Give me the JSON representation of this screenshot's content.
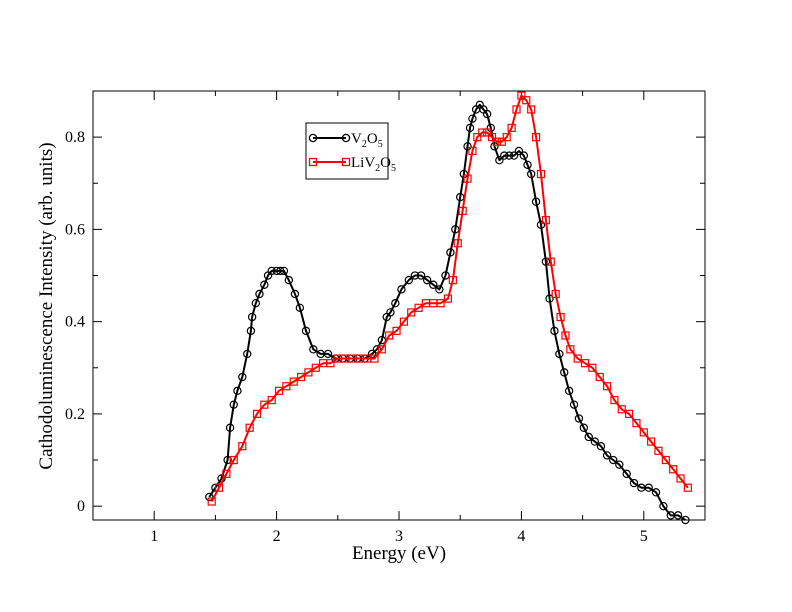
{
  "chart_data": {
    "type": "line",
    "title": "",
    "xlabel": "Energy (eV)",
    "ylabel": "Cathodoluminescence Intensity (arb. units)",
    "xlim": [
      0.5,
      5.5
    ],
    "ylim": [
      -0.03,
      0.9
    ],
    "x_ticks": [
      1,
      2,
      3,
      4,
      5
    ],
    "y_ticks": [
      0,
      0.2,
      0.4,
      0.6,
      0.8
    ],
    "x_tick_labels": [
      "1",
      "2",
      "3",
      "4",
      "5"
    ],
    "y_tick_labels": [
      "0",
      "0.2",
      "0.4",
      "0.6",
      "0.8"
    ],
    "legend_position": "upper-left-inside",
    "series": [
      {
        "name": "V2O5",
        "legend_main": "V",
        "legend_sub1": "2",
        "legend_mid": "O",
        "legend_sub2": "5",
        "color": "#000000",
        "marker": "circle",
        "x": [
          1.45,
          1.5,
          1.55,
          1.6,
          1.62,
          1.65,
          1.68,
          1.72,
          1.76,
          1.79,
          1.8,
          1.83,
          1.86,
          1.9,
          1.93,
          1.96,
          2.0,
          2.03,
          2.06,
          2.1,
          2.15,
          2.19,
          2.24,
          2.3,
          2.36,
          2.42,
          2.48,
          2.54,
          2.6,
          2.66,
          2.72,
          2.78,
          2.82,
          2.86,
          2.9,
          2.93,
          2.97,
          3.02,
          3.08,
          3.13,
          3.18,
          3.23,
          3.28,
          3.33,
          3.38,
          3.42,
          3.46,
          3.5,
          3.53,
          3.56,
          3.58,
          3.6,
          3.63,
          3.66,
          3.69,
          3.72,
          3.75,
          3.78,
          3.82,
          3.86,
          3.9,
          3.94,
          3.98,
          4.02,
          4.05,
          4.08,
          4.12,
          4.16,
          4.2,
          4.23,
          4.27,
          4.31,
          4.35,
          4.39,
          4.43,
          4.47,
          4.51,
          4.55,
          4.6,
          4.65,
          4.7,
          4.75,
          4.8,
          4.86,
          4.92,
          4.98,
          5.04,
          5.1,
          5.16,
          5.22,
          5.28,
          5.34
        ],
        "y": [
          0.02,
          0.04,
          0.06,
          0.1,
          0.17,
          0.22,
          0.25,
          0.28,
          0.33,
          0.38,
          0.41,
          0.44,
          0.46,
          0.48,
          0.5,
          0.51,
          0.51,
          0.51,
          0.51,
          0.49,
          0.46,
          0.43,
          0.38,
          0.34,
          0.33,
          0.33,
          0.32,
          0.32,
          0.32,
          0.32,
          0.32,
          0.33,
          0.34,
          0.36,
          0.41,
          0.42,
          0.44,
          0.47,
          0.49,
          0.5,
          0.5,
          0.49,
          0.48,
          0.47,
          0.5,
          0.55,
          0.6,
          0.67,
          0.72,
          0.78,
          0.82,
          0.84,
          0.86,
          0.87,
          0.86,
          0.85,
          0.82,
          0.78,
          0.75,
          0.76,
          0.76,
          0.76,
          0.77,
          0.76,
          0.74,
          0.72,
          0.66,
          0.61,
          0.53,
          0.45,
          0.38,
          0.33,
          0.29,
          0.25,
          0.22,
          0.19,
          0.17,
          0.15,
          0.14,
          0.13,
          0.11,
          0.1,
          0.09,
          0.07,
          0.05,
          0.04,
          0.04,
          0.03,
          0.0,
          -0.02,
          -0.02,
          -0.03
        ]
      },
      {
        "name": "LiV2O5",
        "legend_main": "LiV",
        "legend_sub1": "2",
        "legend_mid": "O",
        "legend_sub2": "5",
        "color": "#ff0000",
        "marker": "square",
        "x": [
          1.47,
          1.53,
          1.59,
          1.65,
          1.72,
          1.78,
          1.84,
          1.9,
          1.96,
          2.02,
          2.08,
          2.14,
          2.2,
          2.26,
          2.32,
          2.38,
          2.44,
          2.5,
          2.56,
          2.62,
          2.68,
          2.74,
          2.8,
          2.86,
          2.92,
          2.98,
          3.04,
          3.1,
          3.16,
          3.22,
          3.28,
          3.34,
          3.4,
          3.44,
          3.48,
          3.52,
          3.56,
          3.6,
          3.64,
          3.68,
          3.72,
          3.76,
          3.8,
          3.84,
          3.88,
          3.92,
          3.96,
          4.0,
          4.04,
          4.08,
          4.12,
          4.16,
          4.2,
          4.24,
          4.28,
          4.32,
          4.36,
          4.4,
          4.46,
          4.52,
          4.58,
          4.64,
          4.7,
          4.76,
          4.82,
          4.88,
          4.94,
          5.0,
          5.06,
          5.12,
          5.18,
          5.24,
          5.3,
          5.36
        ],
        "y": [
          0.01,
          0.04,
          0.07,
          0.1,
          0.13,
          0.17,
          0.2,
          0.22,
          0.23,
          0.25,
          0.26,
          0.27,
          0.28,
          0.29,
          0.3,
          0.31,
          0.31,
          0.32,
          0.32,
          0.32,
          0.32,
          0.32,
          0.32,
          0.34,
          0.37,
          0.38,
          0.4,
          0.42,
          0.43,
          0.44,
          0.44,
          0.44,
          0.45,
          0.49,
          0.57,
          0.64,
          0.71,
          0.77,
          0.8,
          0.81,
          0.81,
          0.8,
          0.79,
          0.79,
          0.8,
          0.82,
          0.86,
          0.89,
          0.88,
          0.86,
          0.8,
          0.72,
          0.62,
          0.53,
          0.46,
          0.41,
          0.37,
          0.34,
          0.32,
          0.31,
          0.3,
          0.28,
          0.26,
          0.23,
          0.21,
          0.2,
          0.18,
          0.16,
          0.14,
          0.12,
          0.1,
          0.08,
          0.06,
          0.04
        ]
      }
    ]
  }
}
